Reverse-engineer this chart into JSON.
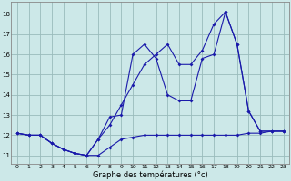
{
  "xlabel": "Graphe des températures (°c)",
  "hours": [
    0,
    1,
    2,
    3,
    4,
    5,
    6,
    7,
    8,
    9,
    10,
    11,
    12,
    13,
    14,
    15,
    16,
    17,
    18,
    19,
    20,
    21,
    22,
    23
  ],
  "line_flat": [
    12.1,
    12.0,
    12.0,
    11.6,
    11.3,
    11.1,
    11.0,
    11.0,
    11.4,
    11.8,
    11.9,
    12.0,
    12.0,
    12.0,
    12.0,
    12.0,
    12.0,
    12.0,
    12.0,
    12.0,
    12.1,
    12.1,
    12.2,
    12.2
  ],
  "line_mid": [
    12.1,
    12.0,
    12.0,
    11.6,
    11.3,
    11.1,
    11.0,
    11.8,
    12.9,
    13.0,
    16.0,
    16.5,
    15.8,
    14.0,
    13.7,
    13.7,
    15.8,
    16.0,
    18.1,
    16.5,
    13.2,
    12.2,
    12.2,
    12.2
  ],
  "line_top": [
    12.1,
    12.0,
    12.0,
    11.6,
    11.3,
    11.1,
    11.0,
    11.8,
    12.5,
    13.5,
    14.5,
    15.5,
    16.0,
    16.5,
    15.5,
    15.5,
    16.2,
    17.5,
    18.1,
    16.5,
    13.2,
    12.2,
    12.2,
    12.2
  ],
  "line_color": "#1a1aaa",
  "bg_color": "#cce8e8",
  "grid_color": "#99bbbb",
  "ylim": [
    10.6,
    18.6
  ],
  "yticks": [
    11,
    12,
    13,
    14,
    15,
    16,
    17,
    18
  ],
  "xlim": [
    -0.5,
    23.5
  ]
}
